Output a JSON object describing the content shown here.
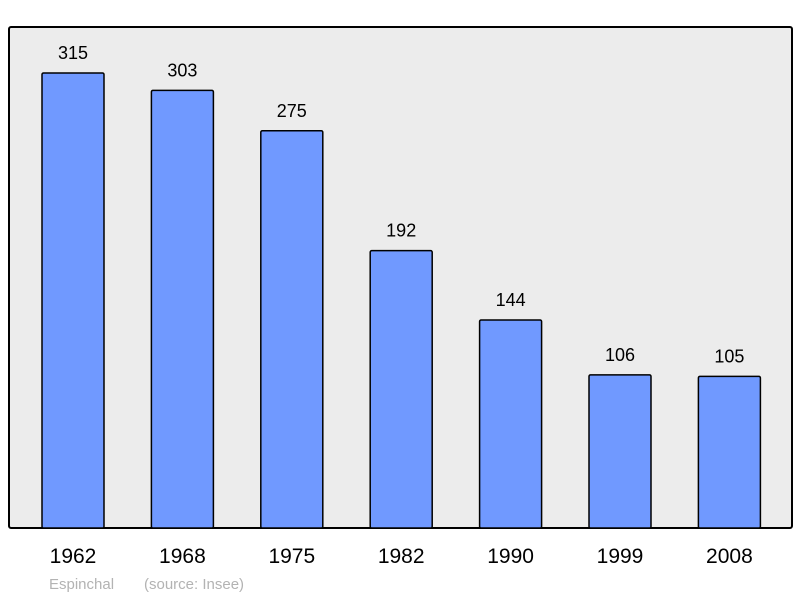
{
  "chart_data": {
    "type": "bar",
    "categories": [
      "1962",
      "1968",
      "1975",
      "1982",
      "1990",
      "1999",
      "2008"
    ],
    "values": [
      315,
      303,
      275,
      192,
      144,
      106,
      105
    ],
    "ylim": [
      0,
      315
    ],
    "grid": false,
    "data_labels": true,
    "colors": {
      "bar": "#7099ff",
      "background": "#ececec",
      "border": "#000000"
    }
  },
  "footer": {
    "place": "Espinchal",
    "source": "(source: Insee)"
  }
}
